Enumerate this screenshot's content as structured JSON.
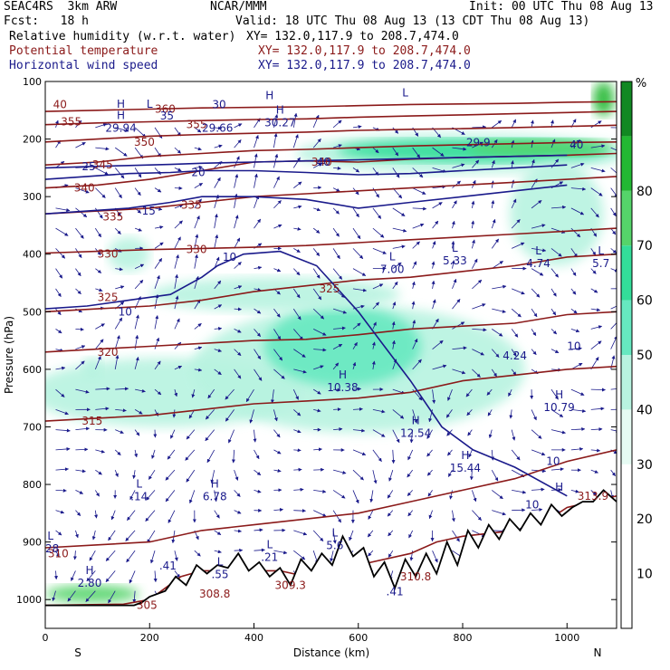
{
  "header": {
    "model": "SEAC4RS  3km ARW",
    "org": "NCAR/MMM",
    "init": "Init: 00 UTC Thu 08 Aug 13",
    "fcst": "Fcst:   18 h",
    "valid": "Valid: 18 UTC Thu 08 Aug 13 (13 CDT Thu 08 Aug 13)",
    "field1": "Relative humidity (w.r.t. water)",
    "field2": "Potential temperature",
    "field3": "Horizontal wind speed",
    "xy1": "XY= 132.0,117.9 to 208.7,474.0",
    "xy2": "XY= 132.0,117.9 to 208.7,474.0",
    "xy3": "XY= 132.0,117.9 to 208.7,474.0"
  },
  "colors": {
    "theta": "#8b1a1a",
    "wind": "#1a1a8b",
    "terrain": "#000000",
    "rh_scale": [
      "#ffffff",
      "#ffffff",
      "#ffffff",
      "#e6fbf3",
      "#b8f3e0",
      "#66e8c0",
      "#33dd99",
      "#55d46a",
      "#22b833",
      "#118822"
    ]
  },
  "chart_data": {
    "type": "cross-section",
    "xlabel": "Distance (km)",
    "ylabel": "Pressure (hPa)",
    "x_ticks": [
      0,
      200,
      400,
      600,
      800,
      1000
    ],
    "y_ticks": [
      100,
      200,
      300,
      400,
      500,
      600,
      700,
      800,
      900,
      1000
    ],
    "xlim": [
      0,
      1095
    ],
    "ylim": [
      1050,
      100
    ],
    "end_labels": {
      "left": "S",
      "right": "N"
    },
    "colorbar": {
      "unit": "%",
      "ticks": [
        10,
        20,
        30,
        40,
        50,
        60,
        70,
        80
      ],
      "levels": [
        0,
        10,
        20,
        30,
        40,
        50,
        60,
        70,
        80,
        90,
        100
      ]
    },
    "theta_contours": [
      {
        "label": "305",
        "p": [
          1010,
          1008,
          1000,
          960,
          950,
          950,
          950,
          960,
          940,
          920,
          900,
          890,
          880,
          870,
          840,
          820
        ],
        "x": [
          0,
          150,
          200,
          260,
          300,
          400,
          450,
          500,
          600,
          700,
          750,
          800,
          900,
          950,
          1000,
          1095
        ]
      },
      {
        "label": "310",
        "p": [
          910,
          905,
          900,
          880,
          870,
          860,
          850,
          830,
          810,
          790,
          760,
          740
        ],
        "x": [
          0,
          100,
          200,
          300,
          400,
          500,
          600,
          700,
          800,
          900,
          1000,
          1095
        ]
      },
      {
        "label": "315",
        "p": [
          690,
          685,
          680,
          670,
          660,
          655,
          650,
          640,
          620,
          610,
          600,
          595
        ],
        "x": [
          0,
          100,
          200,
          300,
          400,
          500,
          600,
          700,
          800,
          900,
          1000,
          1095
        ]
      },
      {
        "label": "320",
        "p": [
          570,
          565,
          560,
          555,
          550,
          548,
          540,
          530,
          525,
          520,
          505,
          500
        ],
        "x": [
          0,
          100,
          200,
          300,
          400,
          500,
          600,
          700,
          800,
          900,
          1000,
          1095
        ]
      },
      {
        "label": "325",
        "p": [
          500,
          495,
          490,
          480,
          465,
          455,
          445,
          440,
          430,
          420,
          405,
          400
        ],
        "x": [
          0,
          100,
          200,
          300,
          400,
          500,
          600,
          700,
          800,
          900,
          1000,
          1095
        ]
      },
      {
        "label": "330",
        "p": [
          398,
          395,
          392,
          390,
          388,
          385,
          380,
          375,
          370,
          365,
          360,
          355
        ],
        "x": [
          0,
          100,
          200,
          300,
          400,
          500,
          600,
          700,
          800,
          900,
          1000,
          1095
        ]
      },
      {
        "label": "335",
        "p": [
          330,
          325,
          320,
          310,
          300,
          295,
          290,
          285,
          280,
          275,
          270,
          265
        ],
        "x": [
          0,
          100,
          200,
          300,
          400,
          500,
          600,
          700,
          800,
          900,
          1000,
          1095
        ]
      },
      {
        "label": "340",
        "p": [
          285,
          280,
          270,
          255,
          240,
          238,
          240,
          235,
          232,
          230,
          228,
          225
        ],
        "x": [
          0,
          100,
          200,
          300,
          400,
          500,
          600,
          700,
          800,
          900,
          1000,
          1095
        ]
      },
      {
        "label": "345",
        "p": [
          245,
          240,
          230,
          225,
          220,
          218,
          215,
          212,
          210,
          208,
          206,
          205
        ],
        "x": [
          0,
          100,
          200,
          300,
          400,
          500,
          600,
          700,
          800,
          900,
          1000,
          1095
        ]
      },
      {
        "label": "350",
        "p": [
          205,
          200,
          195,
          192,
          190,
          188,
          185,
          183,
          182,
          180,
          178,
          176
        ],
        "x": [
          0,
          100,
          200,
          300,
          400,
          500,
          600,
          700,
          800,
          900,
          1000,
          1095
        ]
      },
      {
        "label": "355",
        "p": [
          175,
          172,
          170,
          168,
          166,
          165,
          162,
          160,
          158,
          156,
          154,
          152
        ],
        "x": [
          0,
          100,
          200,
          300,
          400,
          500,
          600,
          700,
          800,
          900,
          1000,
          1095
        ]
      },
      {
        "label": "360",
        "p": [
          152,
          150,
          148,
          146,
          145,
          144,
          142,
          140,
          139,
          138,
          136,
          135
        ],
        "x": [
          0,
          100,
          200,
          300,
          400,
          500,
          600,
          700,
          800,
          900,
          1000,
          1095
        ]
      }
    ],
    "theta_labels": [
      {
        "text": "305",
        "x": 175,
        "p": 1010
      },
      {
        "text": "308.8",
        "x": 295,
        "p": 990
      },
      {
        "text": "309.3",
        "x": 440,
        "p": 975
      },
      {
        "text": "310.8",
        "x": 680,
        "p": 960
      },
      {
        "text": "313.9",
        "x": 1020,
        "p": 820
      },
      {
        "text": "310",
        "x": 5,
        "p": 920
      },
      {
        "text": "315",
        "x": 70,
        "p": 690
      },
      {
        "text": "320",
        "x": 100,
        "p": 570
      },
      {
        "text": "325",
        "x": 100,
        "p": 475
      },
      {
        "text": "325",
        "x": 525,
        "p": 460
      },
      {
        "text": "330",
        "x": 100,
        "p": 400
      },
      {
        "text": "330",
        "x": 270,
        "p": 392
      },
      {
        "text": "335",
        "x": 110,
        "p": 335
      },
      {
        "text": "335",
        "x": 260,
        "p": 315
      },
      {
        "text": "340",
        "x": 55,
        "p": 285
      },
      {
        "text": "340",
        "x": 510,
        "p": 240
      },
      {
        "text": "345",
        "x": 90,
        "p": 245
      },
      {
        "text": "350",
        "x": 170,
        "p": 205
      },
      {
        "text": "355",
        "x": 270,
        "p": 175
      },
      {
        "text": "355",
        "x": 30,
        "p": 170
      },
      {
        "text": "360",
        "x": 210,
        "p": 148
      },
      {
        "text": "40",
        "x": 15,
        "p": 140
      }
    ],
    "wind_contours": [
      {
        "label": "10",
        "p": [
          495,
          490,
          480,
          470,
          440,
          420,
          400,
          395,
          420,
          500,
          560,
          620,
          700,
          740,
          770,
          820
        ],
        "x": [
          0,
          80,
          160,
          240,
          300,
          330,
          380,
          450,
          520,
          600,
          650,
          700,
          760,
          820,
          900,
          1000
        ]
      },
      {
        "label": "15",
        "p": [
          330,
          325,
          320,
          310,
          300,
          300,
          305,
          320,
          310,
          300,
          290,
          280
        ],
        "x": [
          0,
          80,
          160,
          240,
          300,
          400,
          500,
          600,
          700,
          800,
          900,
          1000
        ]
      },
      {
        "label": "20",
        "p": [
          270,
          265,
          260,
          258,
          255,
          255,
          258,
          262,
          260,
          255,
          250,
          245
        ],
        "x": [
          0,
          80,
          160,
          240,
          300,
          400,
          500,
          600,
          700,
          800,
          900,
          1000
        ]
      },
      {
        "label": "25",
        "p": [
          250,
          248,
          246,
          244,
          242,
          240,
          238,
          236,
          234,
          232,
          230,
          228
        ],
        "x": [
          0,
          80,
          160,
          240,
          300,
          400,
          500,
          600,
          700,
          800,
          900,
          1000
        ]
      }
    ],
    "wind_labels": [
      {
        "text": "10",
        "x": 340,
        "p": 405
      },
      {
        "text": "10",
        "x": 140,
        "p": 500
      },
      {
        "text": "10",
        "x": 1000,
        "p": 560
      },
      {
        "text": "10",
        "x": 960,
        "p": 760
      },
      {
        "text": "10",
        "x": 920,
        "p": 835
      },
      {
        "text": "15",
        "x": 185,
        "p": 325
      },
      {
        "text": "20",
        "x": 280,
        "p": 258
      },
      {
        "text": "25",
        "x": 70,
        "p": 248
      },
      {
        "text": "30",
        "x": 320,
        "p": 140
      },
      {
        "text": "35",
        "x": 220,
        "p": 160
      },
      {
        "text": "40",
        "x": 520,
        "p": 240
      },
      {
        "text": "40",
        "x": 1005,
        "p": 210
      }
    ],
    "extrema": [
      {
        "mark": "H",
        "value": "29.94",
        "x": 145,
        "p": 175
      },
      {
        "mark": "",
        "value": "29.66",
        "x": 330,
        "p": 175
      },
      {
        "mark": "H",
        "value": "30.27",
        "x": 450,
        "p": 165
      },
      {
        "mark": "",
        "value": "29.9",
        "x": 830,
        "p": 200
      },
      {
        "mark": "H",
        "value": "",
        "x": 145,
        "p": 155
      },
      {
        "mark": "H",
        "value": "",
        "x": 430,
        "p": 140
      },
      {
        "mark": "L",
        "value": "",
        "x": 200,
        "p": 155
      },
      {
        "mark": "L",
        "value": "",
        "x": 690,
        "p": 135
      },
      {
        "mark": "L",
        "value": "7.00",
        "x": 665,
        "p": 420
      },
      {
        "mark": "L",
        "value": "5.33",
        "x": 785,
        "p": 405
      },
      {
        "mark": "L",
        "value": "4.74",
        "x": 945,
        "p": 410
      },
      {
        "mark": "L",
        "value": "5.7",
        "x": 1065,
        "p": 410
      },
      {
        "mark": "",
        "value": "4.24",
        "x": 900,
        "p": 570
      },
      {
        "mark": "H",
        "value": "10.38",
        "x": 570,
        "p": 625
      },
      {
        "mark": "H",
        "value": "12.54",
        "x": 710,
        "p": 705
      },
      {
        "mark": "H",
        "value": "10.79",
        "x": 985,
        "p": 660
      },
      {
        "mark": "H",
        "value": "15.44",
        "x": 805,
        "p": 765
      },
      {
        "mark": "L",
        "value": ".14",
        "x": 180,
        "p": 815
      },
      {
        "mark": "H",
        "value": "6.78",
        "x": 325,
        "p": 815
      },
      {
        "mark": "H",
        "value": "",
        "x": 985,
        "p": 820
      },
      {
        "mark": "L",
        "value": ".28",
        "x": 10,
        "p": 905
      },
      {
        "mark": "H",
        "value": "2.80",
        "x": 85,
        "p": 965
      },
      {
        "mark": "",
        "value": ".41",
        "x": 235,
        "p": 935
      },
      {
        "mark": "L",
        "value": ".55",
        "x": 335,
        "p": 950
      },
      {
        "mark": "L",
        "value": ".21",
        "x": 430,
        "p": 920
      },
      {
        "mark": "L",
        "value": "5.6",
        "x": 555,
        "p": 900
      },
      {
        "mark": "",
        "value": ".41",
        "x": 670,
        "p": 980
      }
    ],
    "terrain": {
      "x": [
        0,
        50,
        100,
        150,
        170,
        185,
        200,
        230,
        250,
        270,
        290,
        310,
        330,
        350,
        370,
        390,
        410,
        430,
        450,
        470,
        490,
        510,
        530,
        550,
        570,
        590,
        610,
        630,
        650,
        670,
        690,
        710,
        730,
        750,
        770,
        790,
        810,
        830,
        850,
        870,
        890,
        910,
        930,
        950,
        970,
        990,
        1010,
        1030,
        1050,
        1070,
        1095
      ],
      "p": [
        1010,
        1010,
        1010,
        1010,
        1010,
        1005,
        995,
        985,
        960,
        975,
        940,
        955,
        940,
        945,
        920,
        950,
        935,
        960,
        945,
        975,
        930,
        950,
        920,
        940,
        890,
        925,
        910,
        960,
        935,
        980,
        930,
        960,
        920,
        955,
        900,
        940,
        880,
        910,
        870,
        895,
        860,
        880,
        850,
        870,
        835,
        855,
        840,
        830,
        830,
        810,
        830
      ]
    },
    "rh_patches": [
      {
        "level": 40,
        "cx": 230,
        "cy": 640,
        "rx": 260,
        "ry": 60
      },
      {
        "level": 40,
        "cx": 600,
        "cy": 600,
        "rx": 320,
        "ry": 110
      },
      {
        "level": 50,
        "cx": 570,
        "cy": 560,
        "rx": 150,
        "ry": 70
      },
      {
        "level": 40,
        "cx": 800,
        "cy": 225,
        "rx": 320,
        "ry": 35
      },
      {
        "level": 60,
        "cx": 820,
        "cy": 220,
        "rx": 260,
        "ry": 20
      },
      {
        "level": 70,
        "cx": 950,
        "cy": 215,
        "rx": 140,
        "ry": 14
      },
      {
        "level": 40,
        "cx": 980,
        "cy": 330,
        "rx": 90,
        "ry": 90
      },
      {
        "level": 40,
        "cx": 160,
        "cy": 400,
        "rx": 40,
        "ry": 30
      },
      {
        "level": 40,
        "cx": 440,
        "cy": 470,
        "rx": 240,
        "ry": 30
      },
      {
        "level": 70,
        "cx": 90,
        "cy": 990,
        "rx": 90,
        "ry": 15
      },
      {
        "level": 40,
        "cx": 90,
        "cy": 600,
        "rx": 20,
        "ry": 20
      },
      {
        "level": 80,
        "cx": 1070,
        "cy": 130,
        "rx": 20,
        "ry": 30
      }
    ]
  }
}
